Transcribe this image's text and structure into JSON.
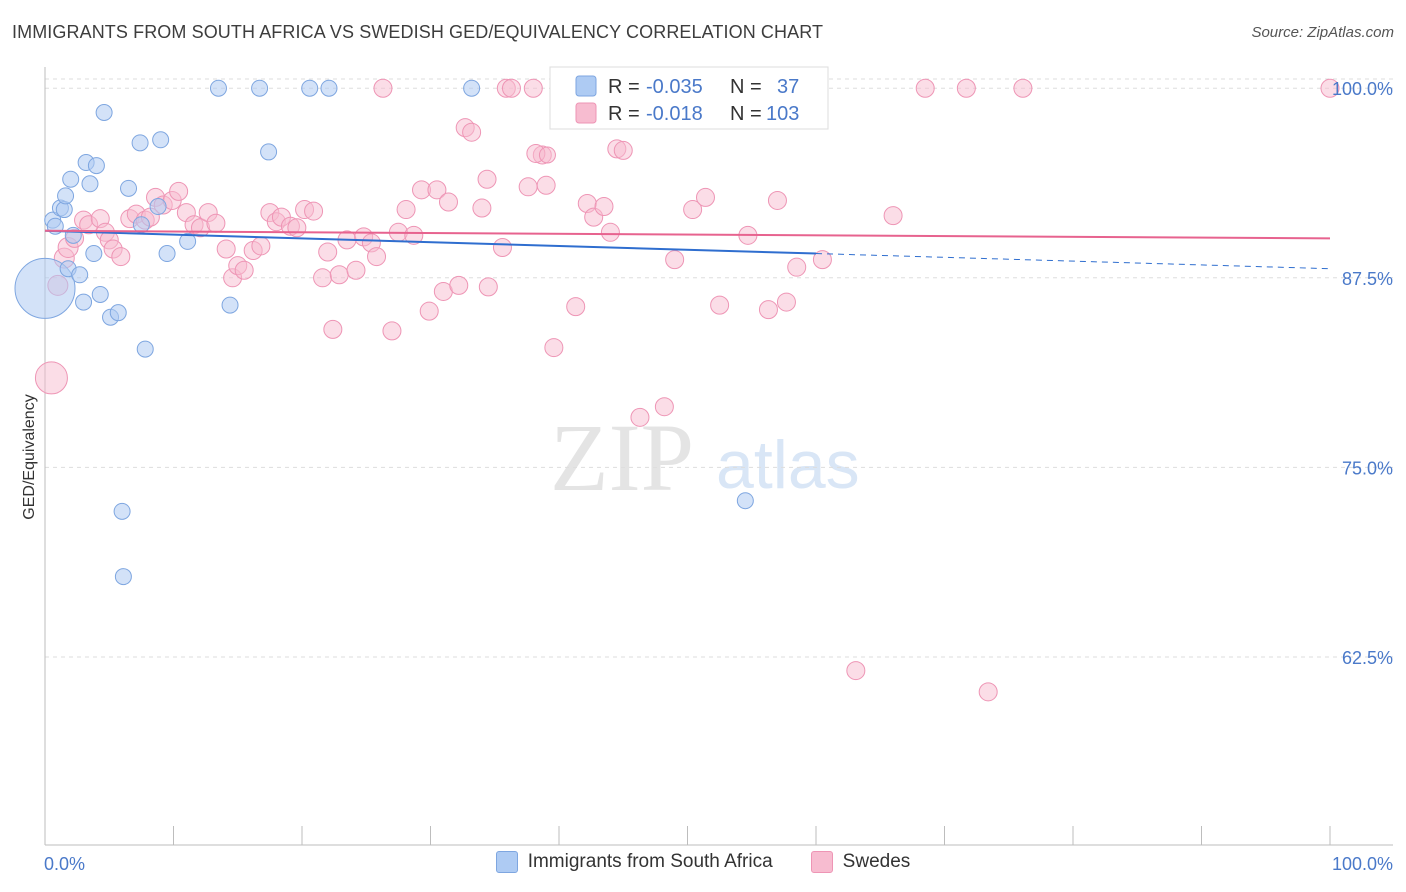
{
  "header": {
    "title": "IMMIGRANTS FROM SOUTH AFRICA VS SWEDISH GED/EQUIVALENCY CORRELATION CHART",
    "source": "Source: ZipAtlas.com"
  },
  "watermark": {
    "zip": "ZIP",
    "atlas": "atlas"
  },
  "colors": {
    "blue_fill": "#aecbf3",
    "blue_stroke": "#7ea6e0",
    "blue_line": "#2f6ecf",
    "pink_fill": "#f7bcd0",
    "pink_stroke": "#ee95b5",
    "pink_line": "#e7638f",
    "tick_text": "#4a79c9",
    "grid": "#dddddd"
  },
  "chart_data": {
    "type": "scatter",
    "title": "IMMIGRANTS FROM SOUTH AFRICA VS SWEDISH GED/EQUIVALENCY CORRELATION CHART",
    "xlabel": "",
    "ylabel": "GED/Equivalency",
    "xlim": [
      0,
      100
    ],
    "ylim": [
      50.1,
      101.4
    ],
    "x_tick_labels": [
      "0.0%",
      "100.0%"
    ],
    "y_ticks": [
      {
        "value": 100.0,
        "label": "100.0%"
      },
      {
        "value": 87.5,
        "label": "87.5%"
      },
      {
        "value": 75.0,
        "label": "75.0%"
      },
      {
        "value": 62.5,
        "label": "62.5%"
      }
    ],
    "grid": "horizontal dashed",
    "legend_top": [
      {
        "series": "Immigrants from South Africa",
        "r_label": "R =",
        "r_value": "-0.035",
        "n_label": "N =",
        "n_value": "37"
      },
      {
        "series": "Swedes",
        "r_label": "R =",
        "r_value": "-0.018",
        "n_label": "N =",
        "n_value": "103"
      }
    ],
    "series": [
      {
        "name": "Immigrants from South Africa",
        "trend": {
          "x0": 0,
          "y0": 90.6,
          "x1": 60,
          "y1": 89.1,
          "dash_to_x": 100,
          "dash_to_y": 88.1
        },
        "points": [
          [
            0,
            86.8,
            30
          ],
          [
            0.6,
            91.3,
            8
          ],
          [
            0.8,
            90.9,
            8
          ],
          [
            1.2,
            92.1,
            8
          ],
          [
            1.5,
            92.0,
            8
          ],
          [
            1.6,
            92.9,
            8
          ],
          [
            1.8,
            88.1,
            8
          ],
          [
            2.0,
            94.0,
            8
          ],
          [
            2.2,
            90.3,
            8
          ],
          [
            2.7,
            87.7,
            8
          ],
          [
            3.0,
            85.9,
            8
          ],
          [
            3.2,
            95.1,
            8
          ],
          [
            3.5,
            93.7,
            8
          ],
          [
            3.8,
            89.1,
            8
          ],
          [
            4.0,
            94.9,
            8
          ],
          [
            4.3,
            86.4,
            8
          ],
          [
            4.6,
            98.4,
            8
          ],
          [
            5.1,
            84.9,
            8
          ],
          [
            5.7,
            85.2,
            8
          ],
          [
            6.0,
            72.1,
            8
          ],
          [
            6.1,
            67.8,
            8
          ],
          [
            6.5,
            93.4,
            8
          ],
          [
            7.4,
            96.4,
            8
          ],
          [
            7.5,
            91.0,
            8
          ],
          [
            7.8,
            82.8,
            8
          ],
          [
            8.8,
            92.2,
            8
          ],
          [
            9.0,
            96.6,
            8
          ],
          [
            9.5,
            89.1,
            8
          ],
          [
            11.1,
            89.9,
            8
          ],
          [
            13.5,
            100.0,
            8
          ],
          [
            14.4,
            85.7,
            8
          ],
          [
            16.7,
            100.0,
            8
          ],
          [
            17.4,
            95.8,
            8
          ],
          [
            20.6,
            100.0,
            8
          ],
          [
            22.1,
            100.0,
            8
          ],
          [
            33.2,
            100.0,
            8
          ],
          [
            54.5,
            72.8,
            8
          ]
        ]
      },
      {
        "name": "Swedes",
        "trend": {
          "x0": 0,
          "y0": 90.6,
          "x1": 100,
          "y1": 90.1
        },
        "points": [
          [
            0.5,
            80.9,
            16
          ],
          [
            1.0,
            87.0,
            10
          ],
          [
            1.5,
            88.8,
            10
          ],
          [
            1.8,
            89.5,
            10
          ],
          [
            2.3,
            90.1,
            9
          ],
          [
            3.0,
            91.3,
            9
          ],
          [
            3.4,
            91.0,
            9
          ],
          [
            4.3,
            91.4,
            9
          ],
          [
            4.7,
            90.5,
            9
          ],
          [
            5.0,
            90.0,
            9
          ],
          [
            5.3,
            89.4,
            9
          ],
          [
            5.9,
            88.9,
            9
          ],
          [
            6.6,
            91.4,
            9
          ],
          [
            7.1,
            91.7,
            9
          ],
          [
            7.8,
            91.3,
            9
          ],
          [
            8.2,
            91.5,
            9
          ],
          [
            8.6,
            92.8,
            9
          ],
          [
            9.2,
            92.3,
            9
          ],
          [
            9.9,
            92.6,
            9
          ],
          [
            10.4,
            93.2,
            9
          ],
          [
            11.0,
            91.8,
            9
          ],
          [
            11.6,
            91.0,
            9
          ],
          [
            12.1,
            90.8,
            9
          ],
          [
            12.7,
            91.8,
            9
          ],
          [
            13.3,
            91.1,
            9
          ],
          [
            14.1,
            89.4,
            9
          ],
          [
            14.6,
            87.5,
            9
          ],
          [
            15.0,
            88.3,
            9
          ],
          [
            15.5,
            88.0,
            9
          ],
          [
            16.2,
            89.3,
            9
          ],
          [
            16.8,
            89.6,
            9
          ],
          [
            17.5,
            91.8,
            9
          ],
          [
            18.0,
            91.2,
            9
          ],
          [
            18.4,
            91.5,
            9
          ],
          [
            19.1,
            90.9,
            9
          ],
          [
            19.6,
            90.8,
            9
          ],
          [
            20.2,
            92.0,
            9
          ],
          [
            20.9,
            91.9,
            9
          ],
          [
            21.6,
            87.5,
            9
          ],
          [
            22.0,
            89.2,
            9
          ],
          [
            22.4,
            84.1,
            9
          ],
          [
            22.9,
            87.7,
            9
          ],
          [
            23.5,
            90.0,
            9
          ],
          [
            24.2,
            88.0,
            9
          ],
          [
            24.8,
            90.2,
            9
          ],
          [
            25.4,
            89.8,
            9
          ],
          [
            25.8,
            88.9,
            9
          ],
          [
            26.3,
            100.0,
            9
          ],
          [
            27.0,
            84.0,
            9
          ],
          [
            27.5,
            90.5,
            9
          ],
          [
            28.1,
            92.0,
            9
          ],
          [
            28.7,
            90.3,
            9
          ],
          [
            29.3,
            93.3,
            9
          ],
          [
            29.9,
            85.3,
            9
          ],
          [
            30.5,
            93.3,
            9
          ],
          [
            31.0,
            86.6,
            9
          ],
          [
            31.4,
            92.5,
            9
          ],
          [
            32.2,
            87.0,
            9
          ],
          [
            32.7,
            97.4,
            9
          ],
          [
            33.2,
            97.1,
            9
          ],
          [
            34.0,
            92.1,
            9
          ],
          [
            34.4,
            94.0,
            9
          ],
          [
            34.5,
            86.9,
            9
          ],
          [
            35.6,
            89.5,
            9
          ],
          [
            35.9,
            100.0,
            9
          ],
          [
            36.3,
            100.0,
            9
          ],
          [
            37.6,
            93.5,
            9
          ],
          [
            38.0,
            100.0,
            9
          ],
          [
            38.7,
            95.6,
            9
          ],
          [
            39.0,
            93.6,
            9
          ],
          [
            38.2,
            95.7,
            9
          ],
          [
            39.1,
            95.6,
            8
          ],
          [
            39.6,
            82.9,
            9
          ],
          [
            41.3,
            85.6,
            9
          ],
          [
            42.2,
            92.4,
            9
          ],
          [
            42.7,
            91.5,
            9
          ],
          [
            43.5,
            92.2,
            9
          ],
          [
            44.0,
            90.5,
            9
          ],
          [
            44.5,
            96.0,
            9
          ],
          [
            45.0,
            95.9,
            9
          ],
          [
            45.7,
            100.0,
            9
          ],
          [
            46.3,
            78.3,
            9
          ],
          [
            47.2,
            100.0,
            9
          ],
          [
            47.8,
            100.0,
            9
          ],
          [
            48.2,
            79.0,
            9
          ],
          [
            49.0,
            88.7,
            9
          ],
          [
            50.4,
            92.0,
            9
          ],
          [
            51.4,
            92.8,
            9
          ],
          [
            52.5,
            85.7,
            9
          ],
          [
            54.7,
            90.3,
            9
          ],
          [
            56.3,
            85.4,
            9
          ],
          [
            57.0,
            92.6,
            9
          ],
          [
            57.7,
            85.9,
            9
          ],
          [
            58.5,
            88.2,
            9
          ],
          [
            60.5,
            88.7,
            9
          ],
          [
            63.1,
            61.6,
            9
          ],
          [
            66.0,
            91.6,
            9
          ],
          [
            68.5,
            100.0,
            9
          ],
          [
            71.7,
            100.0,
            9
          ],
          [
            73.4,
            60.2,
            9
          ],
          [
            76.1,
            100.0,
            9
          ],
          [
            100.0,
            100.0,
            9
          ]
        ]
      }
    ]
  }
}
